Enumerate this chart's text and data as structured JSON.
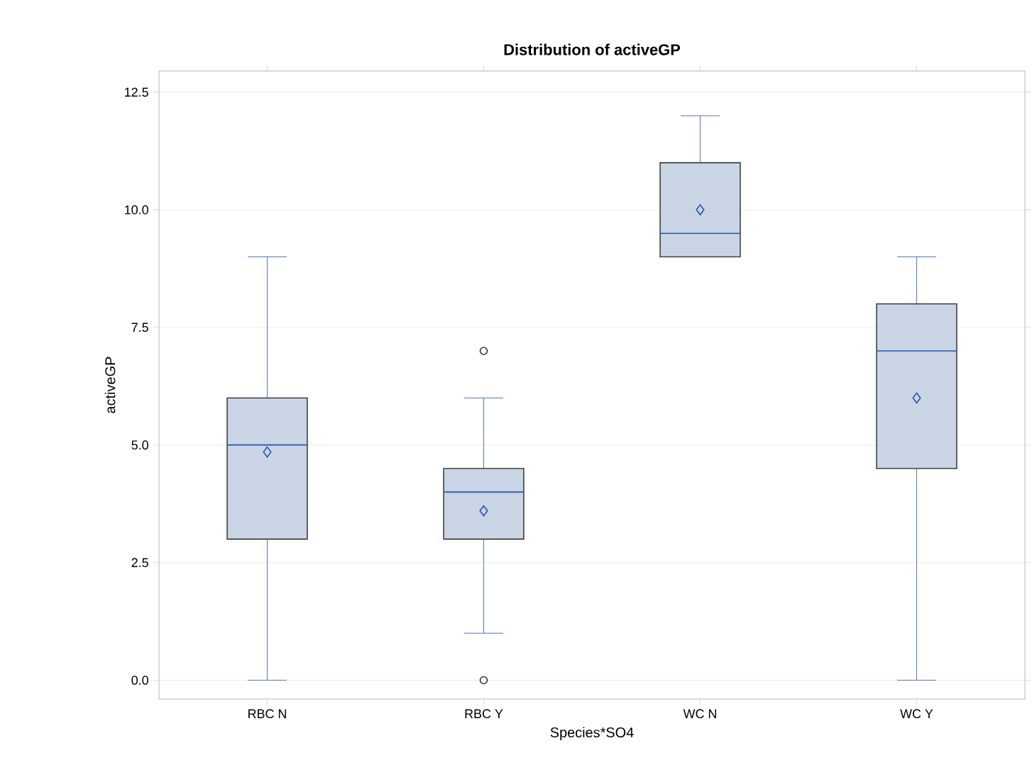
{
  "chart_data": {
    "type": "box",
    "title": "Distribution of activeGP",
    "xlabel": "Species*SO4",
    "ylabel": "activeGP",
    "categories": [
      "RBC N",
      "RBC Y",
      "WC N",
      "WC Y"
    ],
    "boxes": [
      {
        "low": 0,
        "q1": 3,
        "median": 5,
        "q3": 6,
        "high": 9,
        "mean": 4.85
      },
      {
        "low": 1,
        "q1": 3,
        "median": 4,
        "q3": 4.5,
        "high": 6,
        "mean": 3.6,
        "outliers": [
          0,
          7
        ]
      },
      {
        "low": 9,
        "q1": 9,
        "median": 9.5,
        "q3": 11,
        "high": 12,
        "mean": 10
      },
      {
        "low": 0,
        "q1": 4.5,
        "median": 7,
        "q3": 8,
        "high": 9,
        "mean": 6
      }
    ],
    "color": "#c9d5e5",
    "marker": "diamond",
    "ylim": [
      -0.4,
      12.95
    ],
    "yticks": [
      {
        "value": 0,
        "label": "0.0"
      },
      2.5,
      {
        "value": 5,
        "label": "5.0"
      },
      7.5,
      {
        "value": 10,
        "label": "10.0"
      },
      12.5
    ],
    "grid": "y"
  }
}
